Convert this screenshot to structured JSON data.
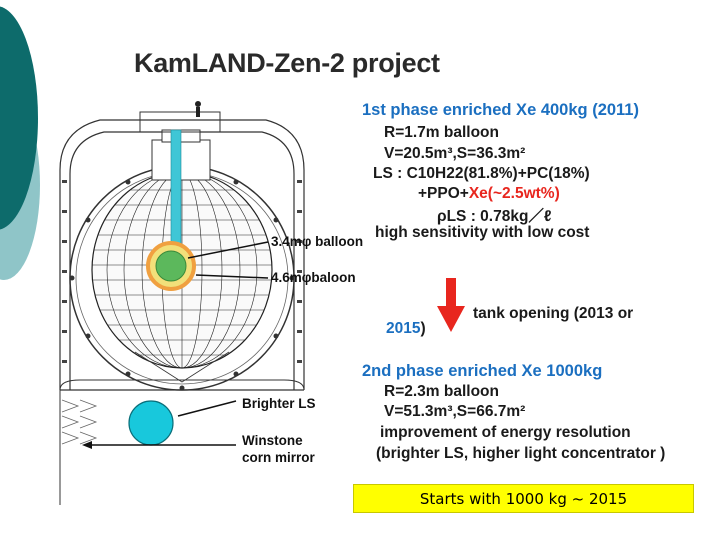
{
  "title": "KamLAND-Zen-2 project",
  "phase1": {
    "heading": "1st phase  enriched Xe 400kg (2011)",
    "lines": [
      "R=1.7m balloon",
      "V=20.5m³,S=36.3m²",
      "LS : C10H22(81.8%)+PC(18%)",
      "+PPO+",
      "Xe(~2.5wt%)",
      "ρLS :     0.78kg／ℓ",
      "high sensitivity with low cost"
    ]
  },
  "transition": {
    "text": "tank opening (2013 or",
    "year": "2015",
    "close": ")"
  },
  "phase2": {
    "heading": "2nd phase  enriched Xe 1000kg",
    "lines": [
      "R=2.3m balloon",
      "V=51.3m³,S=66.7m²",
      "improvement of energy resolution",
      "(brighter LS, higher light concentrator )"
    ]
  },
  "labels": {
    "balloon_small": "3.4mφ balloon",
    "balloon_large": "4.6mφbaloon",
    "brighter_ls": "Brighter LS",
    "winstone_1": "Winstone",
    "winstone_2": "corn mirror"
  },
  "banner": "Starts with 1000 kg ~  2015",
  "colors": {
    "heading_blue": "#1b6fc0",
    "xe_red": "#e8261e",
    "arrow_red": "#e8261e",
    "banner_yellow": "#ffff00",
    "slide_teal": "#0d6b6b",
    "slide_light_teal": "#8fc5c8",
    "inner_green": "#5cb85c",
    "outer_orange": "#f0a040",
    "brighter_ls_cyan": "#18c8dc"
  }
}
